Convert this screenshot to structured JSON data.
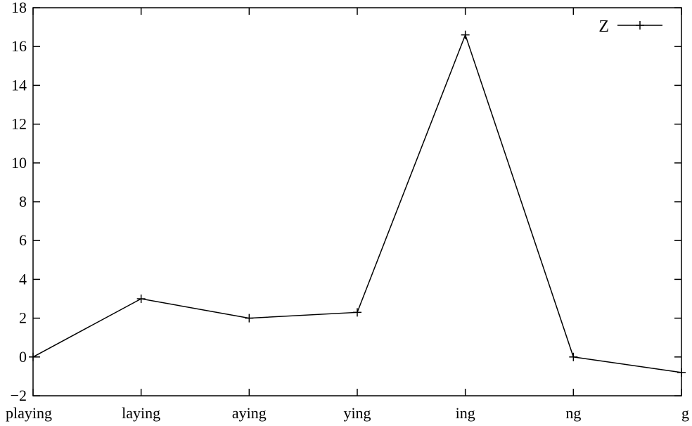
{
  "chart_data": {
    "type": "line",
    "title": "",
    "xlabel": "",
    "ylabel": "",
    "categories": [
      "playing",
      "laying",
      "aying",
      "ying",
      "ing",
      "ng",
      "g"
    ],
    "series": [
      {
        "name": "Z",
        "values": [
          0,
          3.0,
          2.0,
          2.3,
          16.6,
          0,
          -0.8
        ],
        "color": "#000000",
        "marker": "plus"
      }
    ],
    "ylim": [
      -2,
      18
    ],
    "yticks": [
      -2,
      0,
      2,
      4,
      6,
      8,
      10,
      12,
      14,
      16,
      18
    ],
    "legend": {
      "position": "top-right"
    },
    "grid": false
  }
}
